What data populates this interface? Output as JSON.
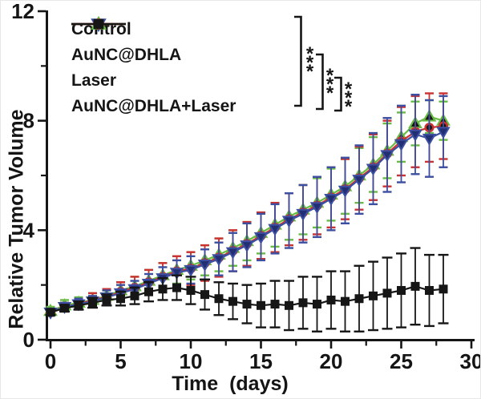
{
  "chart_data": {
    "type": "line",
    "title": "",
    "xlabel": "Time  (days)",
    "ylabel": "Relative Tumor Volume",
    "xlim": [
      0,
      30
    ],
    "ylim": [
      0,
      12
    ],
    "grid": false,
    "legend_position": "top-left",
    "axis_color": "#151515",
    "x_major_ticks": [
      0,
      5,
      10,
      15,
      20,
      25,
      30
    ],
    "x_minor_ticks": [
      2.5,
      7.5,
      12.5,
      17.5,
      22.5,
      27.5
    ],
    "y_major_ticks": [
      0,
      4,
      8,
      12
    ],
    "y_minor_ticks": [
      2,
      6,
      10
    ],
    "x": [
      0,
      1,
      2,
      3,
      4,
      5,
      6,
      7,
      8,
      9,
      10,
      11,
      12,
      13,
      14,
      15,
      16,
      17,
      18,
      19,
      20,
      21,
      22,
      23,
      24,
      25,
      26,
      27,
      28
    ],
    "series": [
      {
        "name": "Control",
        "marker": "triangle-down",
        "line_color": "#3c4fa0",
        "marker_fill": "#232f73",
        "values": [
          1.0,
          1.2,
          1.3,
          1.4,
          1.55,
          1.7,
          1.85,
          2.05,
          2.25,
          2.45,
          2.55,
          2.75,
          2.95,
          3.2,
          3.45,
          3.75,
          4.05,
          4.35,
          4.6,
          4.85,
          5.15,
          5.45,
          5.85,
          6.25,
          6.75,
          7.15,
          7.5,
          7.35,
          7.6
        ],
        "errors": [
          0.1,
          0.15,
          0.2,
          0.2,
          0.25,
          0.3,
          0.3,
          0.35,
          0.4,
          0.45,
          0.5,
          0.55,
          0.6,
          0.7,
          0.8,
          0.85,
          0.9,
          1.0,
          1.05,
          1.1,
          1.15,
          1.2,
          1.25,
          1.3,
          1.35,
          1.4,
          1.45,
          1.4,
          1.3
        ]
      },
      {
        "name": "AuNC@DHLA",
        "marker": "triangle-up",
        "line_color": "#68bc45",
        "marker_fill": "#151515",
        "values": [
          1.05,
          1.25,
          1.35,
          1.45,
          1.6,
          1.8,
          1.95,
          2.15,
          2.35,
          2.55,
          2.7,
          2.9,
          3.1,
          3.35,
          3.6,
          3.9,
          4.2,
          4.5,
          4.75,
          5.0,
          5.3,
          5.6,
          6.0,
          6.4,
          6.9,
          7.4,
          7.9,
          8.15,
          8.0
        ],
        "errors": [
          0.15,
          0.2,
          0.2,
          0.25,
          0.25,
          0.3,
          0.35,
          0.4,
          0.45,
          0.5,
          0.5,
          0.55,
          0.6,
          0.65,
          0.7,
          0.75,
          0.8,
          0.85,
          0.9,
          0.9,
          0.95,
          1.0,
          1.0,
          1.0,
          1.0,
          0.9,
          0.8,
          0.6,
          0.7
        ]
      },
      {
        "name": "Laser",
        "marker": "circle",
        "line_color": "#cb3130",
        "marker_fill": "#151515",
        "values": [
          1.0,
          1.2,
          1.3,
          1.45,
          1.55,
          1.75,
          1.9,
          2.1,
          2.3,
          2.5,
          2.6,
          2.8,
          3.0,
          3.25,
          3.5,
          3.8,
          4.1,
          4.4,
          4.65,
          4.9,
          5.2,
          5.5,
          5.9,
          6.3,
          6.8,
          7.25,
          7.6,
          7.75,
          7.8
        ],
        "errors": [
          0.1,
          0.15,
          0.2,
          0.25,
          0.3,
          0.35,
          0.4,
          0.45,
          0.5,
          0.55,
          0.6,
          0.65,
          0.7,
          0.75,
          0.8,
          0.85,
          0.9,
          0.95,
          1.0,
          1.05,
          1.1,
          1.1,
          1.15,
          1.2,
          1.2,
          1.25,
          1.3,
          1.25,
          1.2
        ]
      },
      {
        "name": "AuNC@DHLA+Laser",
        "marker": "square",
        "line_color": "#161616",
        "marker_fill": "#161616",
        "values": [
          1.0,
          1.15,
          1.25,
          1.35,
          1.45,
          1.5,
          1.6,
          1.75,
          1.85,
          1.9,
          1.8,
          1.65,
          1.5,
          1.4,
          1.3,
          1.25,
          1.3,
          1.25,
          1.35,
          1.3,
          1.45,
          1.4,
          1.5,
          1.6,
          1.7,
          1.8,
          1.95,
          1.8,
          1.85
        ],
        "errors": [
          0.1,
          0.12,
          0.15,
          0.18,
          0.2,
          0.25,
          0.3,
          0.35,
          0.4,
          0.45,
          0.5,
          0.55,
          0.6,
          0.65,
          0.7,
          0.8,
          0.85,
          0.9,
          0.95,
          1.0,
          1.05,
          1.1,
          1.2,
          1.25,
          1.3,
          1.35,
          1.4,
          1.3,
          1.25
        ]
      }
    ],
    "significance": [
      {
        "label": "***"
      },
      {
        "label": "***"
      },
      {
        "label": "***"
      }
    ]
  }
}
